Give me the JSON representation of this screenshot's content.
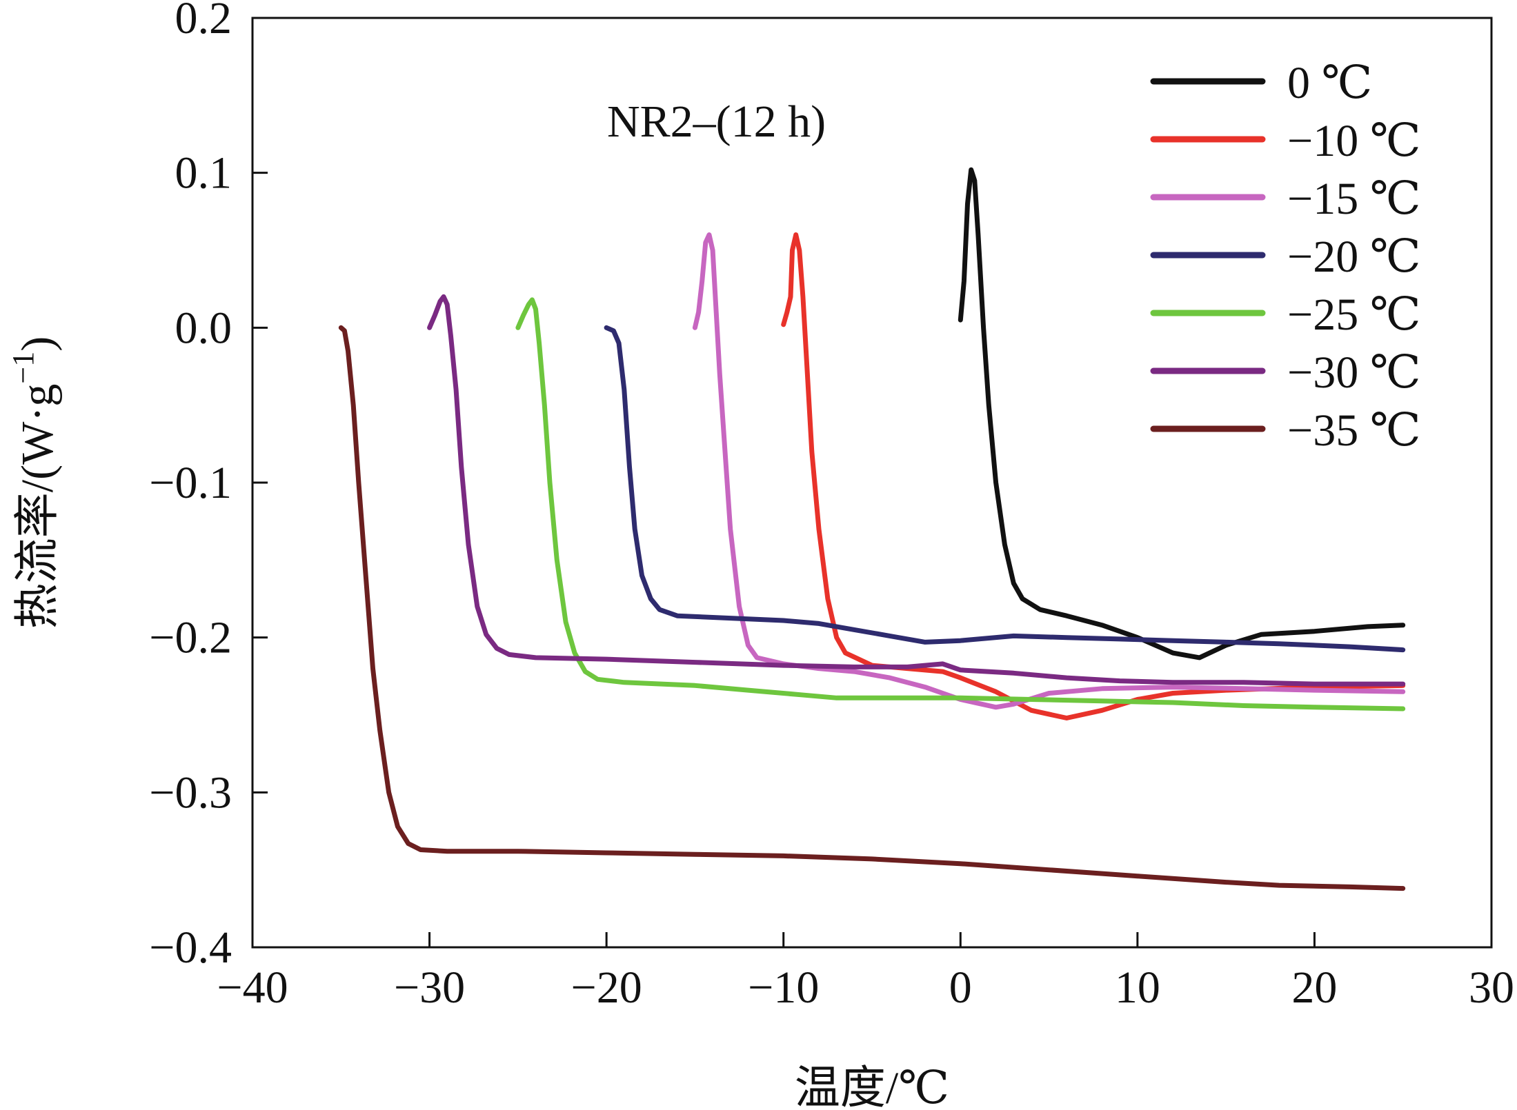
{
  "chart_data": {
    "type": "line",
    "annotation": "NR2–(12 h)",
    "xlabel": "温度/℃",
    "ylabel": "热流率/(W·g",
    "ylabel_sup": "−1",
    "ylabel_tail": ")",
    "xlim": [
      -40,
      30
    ],
    "ylim": [
      -0.4,
      0.2
    ],
    "x_ticks": [
      -40,
      -30,
      -20,
      -10,
      0,
      10,
      20,
      30
    ],
    "x_tick_labels": [
      "−40",
      "−30",
      "−20",
      "−10",
      "0",
      "10",
      "20",
      "30"
    ],
    "y_ticks": [
      0.2,
      0.1,
      0.0,
      -0.1,
      -0.2,
      -0.3,
      -0.4
    ],
    "y_tick_labels": [
      "0.2",
      "0.1",
      "0.0",
      "−0.1",
      "−0.2",
      "−0.3",
      "−0.4"
    ],
    "grid": false,
    "legend_position": "top-right",
    "series": [
      {
        "name": "0 ℃",
        "color": "#111111",
        "points": [
          [
            0.0,
            0.005
          ],
          [
            0.2,
            0.03
          ],
          [
            0.4,
            0.08
          ],
          [
            0.6,
            0.102
          ],
          [
            0.8,
            0.095
          ],
          [
            1.0,
            0.06
          ],
          [
            1.3,
            0.0
          ],
          [
            1.6,
            -0.05
          ],
          [
            2.0,
            -0.1
          ],
          [
            2.5,
            -0.14
          ],
          [
            3.0,
            -0.165
          ],
          [
            3.5,
            -0.175
          ],
          [
            4.5,
            -0.182
          ],
          [
            6,
            -0.186
          ],
          [
            8,
            -0.192
          ],
          [
            10,
            -0.2
          ],
          [
            12,
            -0.21
          ],
          [
            13.5,
            -0.213
          ],
          [
            15,
            -0.205
          ],
          [
            17,
            -0.198
          ],
          [
            20,
            -0.196
          ],
          [
            23,
            -0.193
          ],
          [
            25,
            -0.192
          ]
        ]
      },
      {
        "name": "−10 ℃",
        "color": "#e8322a",
        "points": [
          [
            -10,
            0.002
          ],
          [
            -9.8,
            0.01
          ],
          [
            -9.6,
            0.02
          ],
          [
            -9.5,
            0.05
          ],
          [
            -9.3,
            0.06
          ],
          [
            -9.1,
            0.05
          ],
          [
            -8.9,
            0.02
          ],
          [
            -8.7,
            -0.02
          ],
          [
            -8.4,
            -0.08
          ],
          [
            -8.0,
            -0.13
          ],
          [
            -7.5,
            -0.175
          ],
          [
            -7.0,
            -0.2
          ],
          [
            -6.5,
            -0.21
          ],
          [
            -5,
            -0.218
          ],
          [
            -3,
            -0.22
          ],
          [
            -1,
            -0.222
          ],
          [
            0,
            -0.226
          ],
          [
            2,
            -0.235
          ],
          [
            4,
            -0.247
          ],
          [
            6,
            -0.252
          ],
          [
            8,
            -0.247
          ],
          [
            10,
            -0.24
          ],
          [
            12,
            -0.236
          ],
          [
            15,
            -0.234
          ],
          [
            20,
            -0.232
          ],
          [
            25,
            -0.231
          ]
        ]
      },
      {
        "name": "−15 ℃",
        "color": "#c766c0",
        "points": [
          [
            -15,
            0.0
          ],
          [
            -14.8,
            0.01
          ],
          [
            -14.6,
            0.03
          ],
          [
            -14.4,
            0.055
          ],
          [
            -14.2,
            0.06
          ],
          [
            -14.0,
            0.05
          ],
          [
            -13.8,
            0.01
          ],
          [
            -13.6,
            -0.03
          ],
          [
            -13.3,
            -0.08
          ],
          [
            -13.0,
            -0.13
          ],
          [
            -12.5,
            -0.18
          ],
          [
            -12.0,
            -0.205
          ],
          [
            -11.5,
            -0.213
          ],
          [
            -10,
            -0.217
          ],
          [
            -8,
            -0.22
          ],
          [
            -6,
            -0.222
          ],
          [
            -4,
            -0.226
          ],
          [
            -2,
            -0.232
          ],
          [
            0,
            -0.24
          ],
          [
            2,
            -0.245
          ],
          [
            3,
            -0.243
          ],
          [
            5,
            -0.236
          ],
          [
            8,
            -0.233
          ],
          [
            12,
            -0.232
          ],
          [
            16,
            -0.233
          ],
          [
            20,
            -0.234
          ],
          [
            25,
            -0.235
          ]
        ]
      },
      {
        "name": "−20 ℃",
        "color": "#2e2b6e",
        "points": [
          [
            -20,
            0.0
          ],
          [
            -19.6,
            -0.002
          ],
          [
            -19.3,
            -0.01
          ],
          [
            -19.0,
            -0.04
          ],
          [
            -18.7,
            -0.09
          ],
          [
            -18.4,
            -0.13
          ],
          [
            -18.0,
            -0.16
          ],
          [
            -17.5,
            -0.175
          ],
          [
            -17.0,
            -0.182
          ],
          [
            -16,
            -0.186
          ],
          [
            -14,
            -0.187
          ],
          [
            -12,
            -0.188
          ],
          [
            -10,
            -0.189
          ],
          [
            -8,
            -0.191
          ],
          [
            -6,
            -0.195
          ],
          [
            -4,
            -0.199
          ],
          [
            -2,
            -0.203
          ],
          [
            0,
            -0.202
          ],
          [
            3,
            -0.199
          ],
          [
            6,
            -0.2
          ],
          [
            9,
            -0.201
          ],
          [
            12,
            -0.202
          ],
          [
            15,
            -0.203
          ],
          [
            18,
            -0.204
          ],
          [
            22,
            -0.206
          ],
          [
            25,
            -0.208
          ]
        ]
      },
      {
        "name": "−25 ℃",
        "color": "#6ec63e",
        "points": [
          [
            -25,
            0.0
          ],
          [
            -24.7,
            0.008
          ],
          [
            -24.4,
            0.015
          ],
          [
            -24.2,
            0.018
          ],
          [
            -24.0,
            0.012
          ],
          [
            -23.8,
            -0.01
          ],
          [
            -23.5,
            -0.05
          ],
          [
            -23.2,
            -0.1
          ],
          [
            -22.8,
            -0.15
          ],
          [
            -22.3,
            -0.19
          ],
          [
            -21.8,
            -0.21
          ],
          [
            -21.2,
            -0.222
          ],
          [
            -20.5,
            -0.227
          ],
          [
            -19,
            -0.229
          ],
          [
            -15,
            -0.231
          ],
          [
            -12,
            -0.234
          ],
          [
            -9,
            -0.237
          ],
          [
            -7,
            -0.239
          ],
          [
            -4,
            -0.239
          ],
          [
            0,
            -0.239
          ],
          [
            4,
            -0.24
          ],
          [
            8,
            -0.241
          ],
          [
            12,
            -0.242
          ],
          [
            16,
            -0.244
          ],
          [
            20,
            -0.245
          ],
          [
            25,
            -0.246
          ]
        ]
      },
      {
        "name": "−30 ℃",
        "color": "#7a2a82",
        "points": [
          [
            -30,
            0.0
          ],
          [
            -29.7,
            0.008
          ],
          [
            -29.4,
            0.017
          ],
          [
            -29.2,
            0.02
          ],
          [
            -29.0,
            0.015
          ],
          [
            -28.8,
            -0.005
          ],
          [
            -28.5,
            -0.04
          ],
          [
            -28.2,
            -0.09
          ],
          [
            -27.8,
            -0.14
          ],
          [
            -27.3,
            -0.18
          ],
          [
            -26.8,
            -0.198
          ],
          [
            -26.2,
            -0.207
          ],
          [
            -25.5,
            -0.211
          ],
          [
            -24,
            -0.213
          ],
          [
            -20,
            -0.214
          ],
          [
            -15,
            -0.216
          ],
          [
            -10,
            -0.218
          ],
          [
            -6,
            -0.219
          ],
          [
            -3,
            -0.219
          ],
          [
            -1,
            -0.217
          ],
          [
            0,
            -0.221
          ],
          [
            3,
            -0.223
          ],
          [
            6,
            -0.226
          ],
          [
            9,
            -0.228
          ],
          [
            12,
            -0.229
          ],
          [
            16,
            -0.229
          ],
          [
            20,
            -0.23
          ],
          [
            25,
            -0.23
          ]
        ]
      },
      {
        "name": "−35 ℃",
        "color": "#6b1f1f",
        "points": [
          [
            -35,
            0.0
          ],
          [
            -34.8,
            -0.002
          ],
          [
            -34.6,
            -0.015
          ],
          [
            -34.3,
            -0.05
          ],
          [
            -34.0,
            -0.1
          ],
          [
            -33.6,
            -0.16
          ],
          [
            -33.2,
            -0.22
          ],
          [
            -32.8,
            -0.26
          ],
          [
            -32.3,
            -0.3
          ],
          [
            -31.8,
            -0.322
          ],
          [
            -31.2,
            -0.333
          ],
          [
            -30.5,
            -0.337
          ],
          [
            -29,
            -0.338
          ],
          [
            -25,
            -0.338
          ],
          [
            -20,
            -0.339
          ],
          [
            -15,
            -0.34
          ],
          [
            -10,
            -0.341
          ],
          [
            -5,
            -0.343
          ],
          [
            0,
            -0.346
          ],
          [
            5,
            -0.35
          ],
          [
            10,
            -0.354
          ],
          [
            15,
            -0.358
          ],
          [
            18,
            -0.36
          ],
          [
            22,
            -0.361
          ],
          [
            25,
            -0.362
          ]
        ]
      }
    ]
  }
}
